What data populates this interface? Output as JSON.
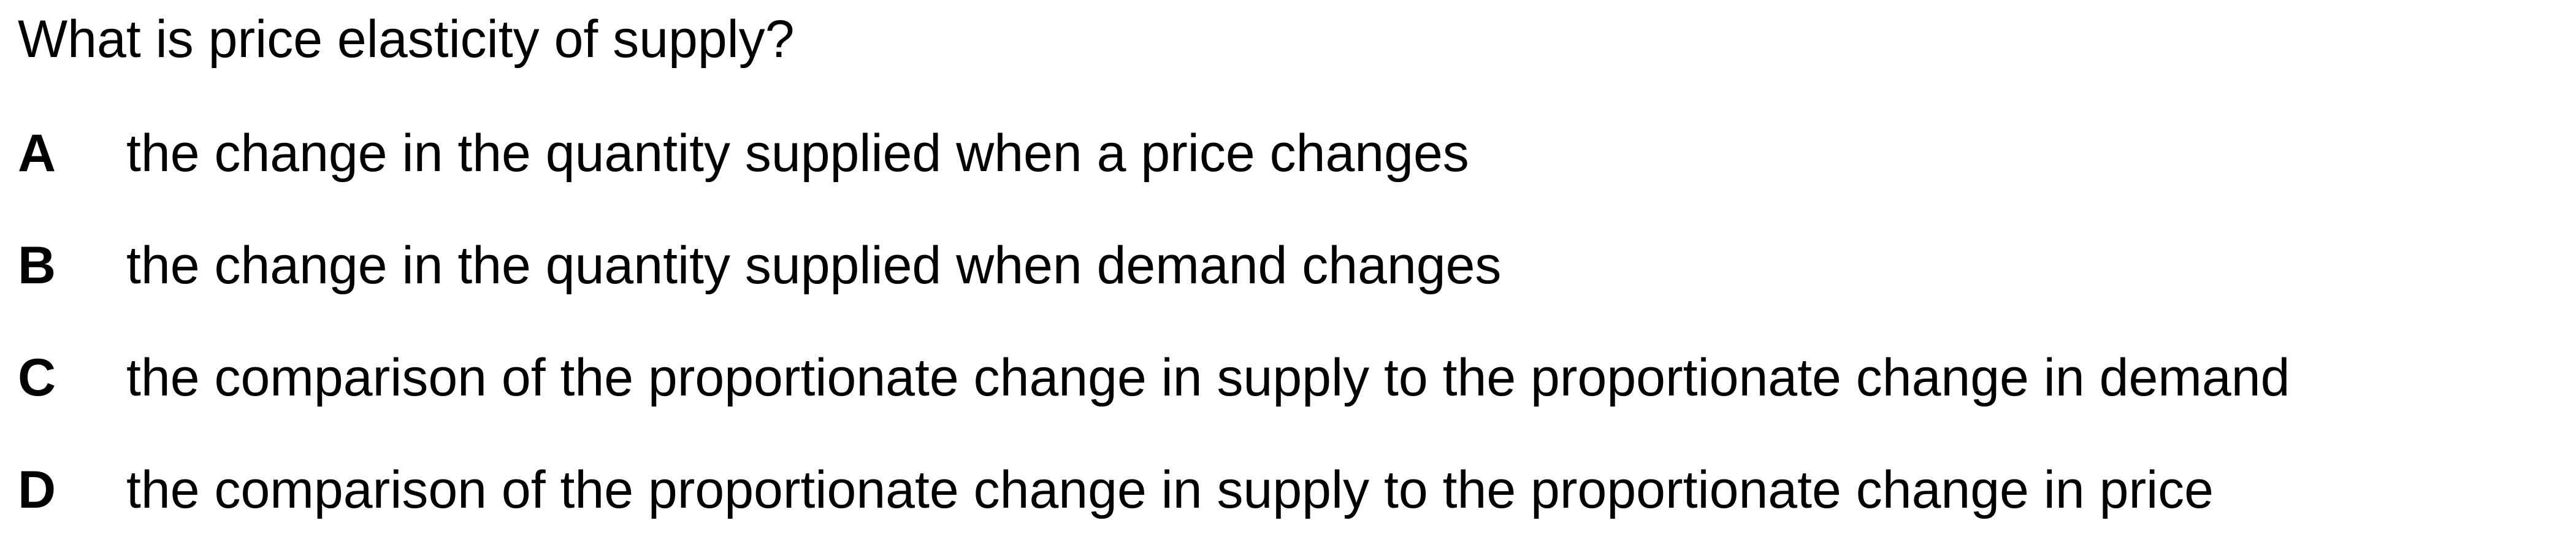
{
  "question": {
    "text": "What is price elasticity of supply?"
  },
  "options": [
    {
      "letter": "A",
      "text": "the change in the quantity supplied when a price changes"
    },
    {
      "letter": "B",
      "text": "the change in the quantity supplied when demand changes"
    },
    {
      "letter": "C",
      "text": "the comparison of the proportionate change in supply to the proportionate change in demand"
    },
    {
      "letter": "D",
      "text": "the comparison of the proportionate change in supply to the proportionate change in price"
    }
  ]
}
